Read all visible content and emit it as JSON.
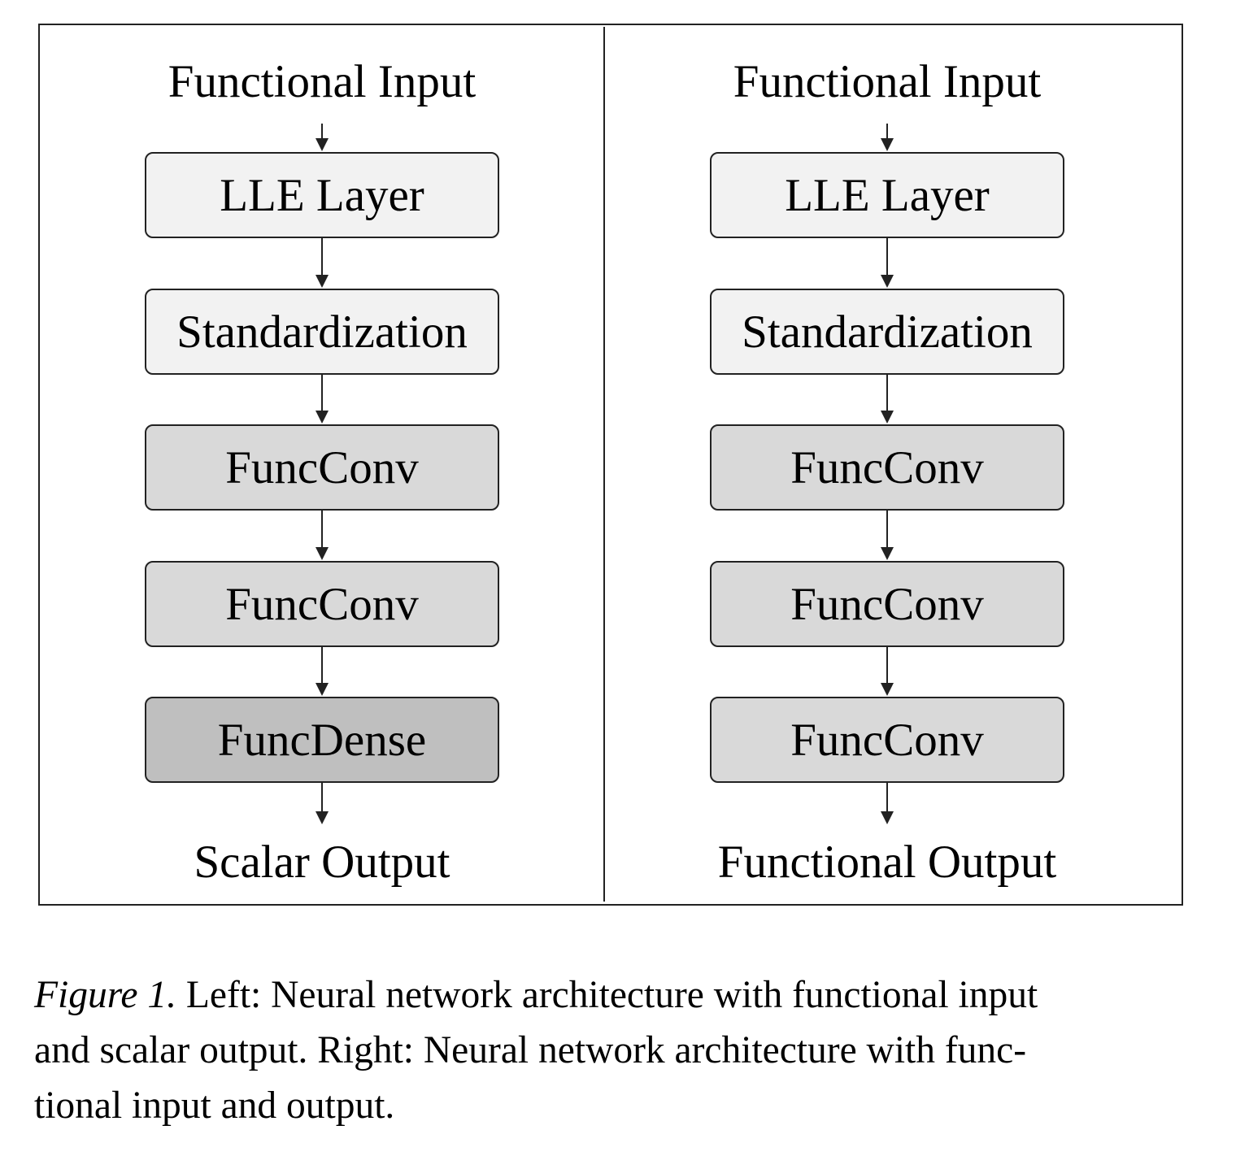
{
  "left_panel": {
    "input_label": "Functional Input",
    "layers": [
      "LLE Layer",
      "Standardization",
      "FuncConv",
      "FuncConv",
      "FuncDense"
    ],
    "output_label": "Scalar Output"
  },
  "right_panel": {
    "input_label": "Functional Input",
    "layers": [
      "LLE Layer",
      "Standardization",
      "FuncConv",
      "FuncConv",
      "FuncConv"
    ],
    "output_label": "Functional Output"
  },
  "colors": {
    "preprocessing_box": "#f2f2f2",
    "conv_box": "#d9d9d9",
    "dense_box": "#bfbfbf"
  },
  "caption": {
    "label": "Figure 1.",
    "line1_rest": " Left: Neural network architecture with functional input",
    "line2": "and scalar output. Right: Neural network architecture with func-",
    "line3": "tional input and output."
  }
}
